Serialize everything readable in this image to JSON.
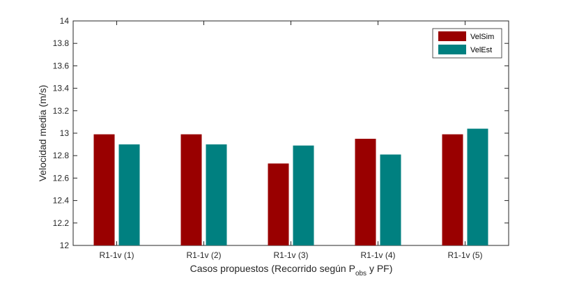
{
  "chart_data": {
    "type": "bar",
    "categories": [
      "R1-1v (1)",
      "R1-1v (2)",
      "R1-1v (3)",
      "R1-1v (4)",
      "R1-1v (5)"
    ],
    "series": [
      {
        "name": "VelSim",
        "color": "#990000",
        "values": [
          12.99,
          12.99,
          12.73,
          12.95,
          12.99
        ]
      },
      {
        "name": "VelEst",
        "color": "#008080",
        "values": [
          12.9,
          12.9,
          12.89,
          12.81,
          13.04
        ]
      }
    ],
    "title": "",
    "xlabel": {
      "main": "Casos propuestos (Recorrido según P",
      "subscript": "obs",
      "suffix": " y PF)"
    },
    "ylabel": "Velocidad media (m/s)",
    "ylim": [
      12,
      14
    ],
    "yticks": [
      "12",
      "12.2",
      "12.4",
      "12.6",
      "12.8",
      "13",
      "13.2",
      "13.4",
      "13.6",
      "13.8",
      "14"
    ],
    "grid": false,
    "legend_position": "top-right"
  }
}
